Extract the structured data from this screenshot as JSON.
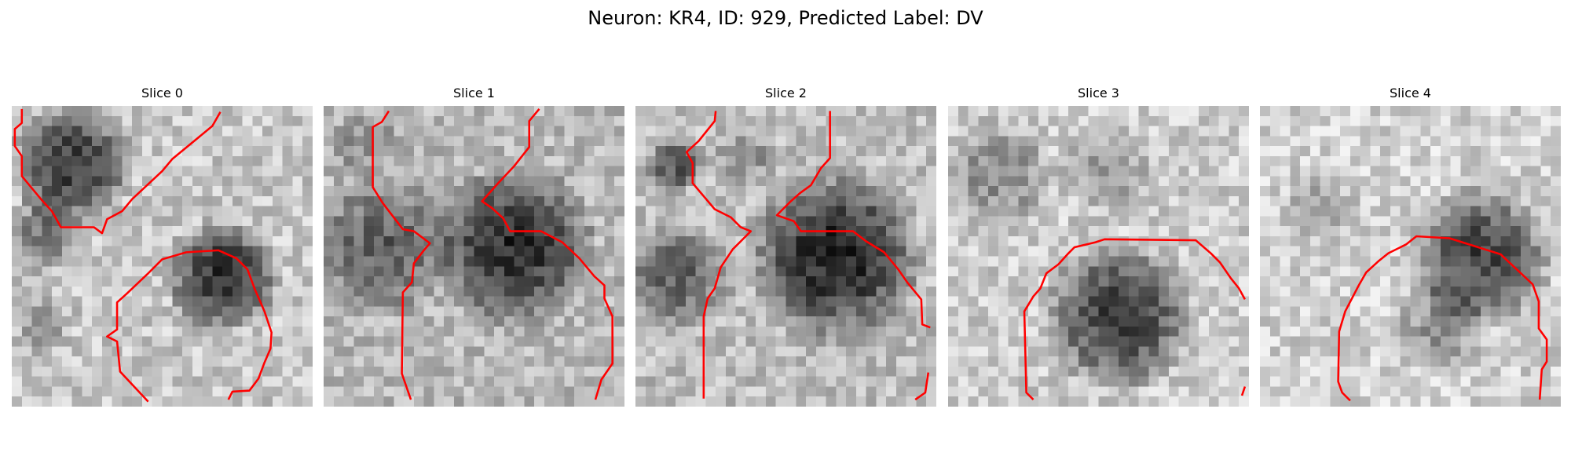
{
  "figure": {
    "title": "Neuron: KR4, ID: 929, Predicted Label: DV"
  },
  "panels": [
    {
      "title": "Slice 0"
    },
    {
      "title": "Slice 1"
    },
    {
      "title": "Slice 2"
    },
    {
      "title": "Slice 3"
    },
    {
      "title": "Slice 4"
    }
  ],
  "style": {
    "contour_color": "#ff0000",
    "colormap": "gray"
  }
}
